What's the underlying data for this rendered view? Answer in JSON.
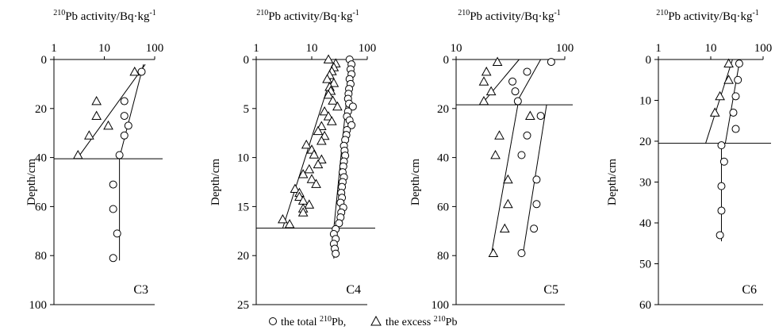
{
  "x_axis_title": "Pb activity/Bq·kg",
  "x_axis_title_sup_pre": "210",
  "x_axis_title_sup_post": "-1",
  "y_axis_title": "Depth/cm",
  "legend": {
    "total_text": "the total",
    "total_sup": "210",
    "total_suffix": "Pb,",
    "excess_text": "the excess",
    "excess_sup": "210",
    "excess_suffix": "Pb"
  },
  "colors": {
    "ink": "#000000",
    "background": "#ffffff"
  },
  "chart_data": [
    {
      "type": "scatter",
      "core": "C3",
      "x_scale": "log",
      "xlim": [
        1,
        100
      ],
      "x_ticks": [
        "1",
        "10",
        "100"
      ],
      "ylim": [
        0,
        100
      ],
      "y_ticks": [
        "0",
        "20",
        "40",
        "60",
        "80",
        "100"
      ],
      "total_210Pb": [
        [
          55,
          5
        ],
        [
          25,
          17
        ],
        [
          25,
          23
        ],
        [
          30,
          27
        ],
        [
          25,
          31
        ],
        [
          20,
          39
        ],
        [
          15,
          51
        ],
        [
          15,
          61
        ],
        [
          18,
          71
        ],
        [
          15,
          81
        ]
      ],
      "excess_210Pb": [
        [
          40,
          5
        ],
        [
          7,
          17
        ],
        [
          7,
          23
        ],
        [
          12,
          27
        ],
        [
          5,
          31
        ],
        [
          3,
          39
        ]
      ],
      "break_depth": 40.5,
      "fit_lines": [
        {
          "x": [
            3,
            65
          ],
          "y": [
            40,
            2
          ]
        },
        {
          "x": [
            20,
            60
          ],
          "y": [
            40,
            2
          ]
        },
        {
          "x": [
            20,
            20
          ],
          "y": [
            40,
            82
          ]
        }
      ]
    },
    {
      "type": "scatter",
      "core": "C4",
      "x_scale": "log",
      "xlim": [
        1,
        100
      ],
      "x_ticks": [
        "1",
        "10",
        "100"
      ],
      "ylim": [
        0,
        25
      ],
      "y_ticks": [
        "0",
        "5",
        "10",
        "15",
        "20",
        "25"
      ],
      "total_210Pb": [
        [
          48,
          0
        ],
        [
          52,
          0.5
        ],
        [
          50,
          1
        ],
        [
          52,
          1.5
        ],
        [
          48,
          2
        ],
        [
          50,
          2.5
        ],
        [
          47,
          3
        ],
        [
          46,
          3.5
        ],
        [
          45,
          4
        ],
        [
          47,
          4.5
        ],
        [
          55,
          4.8
        ],
        [
          45,
          5.3
        ],
        [
          43,
          5.8
        ],
        [
          48,
          6.2
        ],
        [
          52,
          6.7
        ],
        [
          43,
          7.2
        ],
        [
          42,
          7.7
        ],
        [
          40,
          8.2
        ],
        [
          38,
          8.8
        ],
        [
          39,
          9.3
        ],
        [
          40,
          9.8
        ],
        [
          38,
          10.4
        ],
        [
          37,
          10.9
        ],
        [
          36,
          11.5
        ],
        [
          38,
          12
        ],
        [
          36,
          12.5
        ],
        [
          35,
          13
        ],
        [
          34,
          13.6
        ],
        [
          35,
          14.1
        ],
        [
          33,
          14.6
        ],
        [
          37,
          15.1
        ],
        [
          34,
          15.6
        ],
        [
          33,
          16.1
        ],
        [
          31,
          16.7
        ],
        [
          27,
          17.3
        ],
        [
          25,
          17.8
        ],
        [
          27,
          18.3
        ],
        [
          25,
          18.8
        ],
        [
          26,
          19.3
        ],
        [
          27,
          19.8
        ]
      ],
      "excess_210Pb": [
        [
          20,
          0
        ],
        [
          27,
          0.4
        ],
        [
          25,
          0.8
        ],
        [
          23,
          1.2
        ],
        [
          21,
          1.6
        ],
        [
          19,
          2
        ],
        [
          25,
          2.4
        ],
        [
          21,
          2.8
        ],
        [
          22,
          3.2
        ],
        [
          20,
          3.6
        ],
        [
          24,
          4.2
        ],
        [
          29,
          4.8
        ],
        [
          17,
          5.3
        ],
        [
          20,
          5.8
        ],
        [
          23,
          6.3
        ],
        [
          15,
          6.8
        ],
        [
          13,
          7.3
        ],
        [
          17,
          7.8
        ],
        [
          15,
          8.3
        ],
        [
          8,
          8.7
        ],
        [
          10,
          9.2
        ],
        [
          11,
          9.7
        ],
        [
          15,
          10.2
        ],
        [
          13,
          10.7
        ],
        [
          9,
          11.2
        ],
        [
          7,
          11.7
        ],
        [
          10,
          12.2
        ],
        [
          12,
          12.7
        ],
        [
          5,
          13.2
        ],
        [
          6,
          13.6
        ],
        [
          6,
          14
        ],
        [
          7,
          14.4
        ],
        [
          9,
          14.8
        ],
        [
          7,
          15.2
        ],
        [
          7,
          15.6
        ],
        [
          3,
          16.3
        ],
        [
          4,
          16.8
        ]
      ],
      "break_depth": 17.2,
      "fit_lines": [
        {
          "x": [
            3,
            28
          ],
          "y": [
            17.2,
            0
          ]
        },
        {
          "x": [
            25,
            50
          ],
          "y": [
            17.2,
            0
          ]
        },
        {
          "x": [
            25,
            25
          ],
          "y": [
            17.2,
            20.3
          ]
        }
      ]
    },
    {
      "type": "scatter",
      "core": "C5",
      "x_scale": "log",
      "xlim": [
        10,
        100
      ],
      "x_ticks": [
        "10",
        "100"
      ],
      "ylim": [
        0,
        100
      ],
      "y_ticks": [
        "0",
        "20",
        "40",
        "60",
        "80",
        "100"
      ],
      "total_210Pb": [
        [
          75,
          1
        ],
        [
          45,
          5
        ],
        [
          33,
          9
        ],
        [
          35,
          13
        ],
        [
          37,
          17
        ],
        [
          60,
          23
        ],
        [
          45,
          31
        ],
        [
          40,
          39
        ],
        [
          55,
          49
        ],
        [
          55,
          59
        ],
        [
          52,
          69
        ],
        [
          40,
          79
        ]
      ],
      "excess_210Pb": [
        [
          24,
          1
        ],
        [
          19,
          5
        ],
        [
          18,
          9
        ],
        [
          21,
          13
        ],
        [
          18,
          17
        ],
        [
          48,
          23
        ],
        [
          25,
          31
        ],
        [
          23,
          39
        ],
        [
          30,
          49
        ],
        [
          30,
          59
        ],
        [
          28,
          69
        ],
        [
          22,
          79
        ]
      ],
      "break_depth": 18.5,
      "fit_lines": [
        {
          "x": [
            17,
            38
          ],
          "y": [
            18.5,
            0
          ]
        },
        {
          "x": [
            35,
            60
          ],
          "y": [
            18.5,
            0
          ]
        },
        {
          "x": [
            21,
            37
          ],
          "y": [
            80,
            18.5
          ]
        },
        {
          "x": [
            41,
            68
          ],
          "y": [
            80,
            18.5
          ]
        }
      ]
    },
    {
      "type": "scatter",
      "core": "C6",
      "x_scale": "log",
      "xlim": [
        1,
        100
      ],
      "x_ticks": [
        "1",
        "10",
        "100"
      ],
      "ylim": [
        0,
        60
      ],
      "y_ticks": [
        "0",
        "10",
        "20",
        "30",
        "40",
        "50",
        "60"
      ],
      "total_210Pb": [
        [
          35,
          1
        ],
        [
          33,
          5
        ],
        [
          30,
          9
        ],
        [
          27,
          13
        ],
        [
          30,
          17
        ],
        [
          16,
          21
        ],
        [
          18,
          25
        ],
        [
          16,
          31
        ],
        [
          16,
          37
        ],
        [
          15,
          43
        ]
      ],
      "excess_210Pb": [
        [
          22,
          1
        ],
        [
          22,
          5
        ],
        [
          15,
          9
        ],
        [
          12,
          13
        ]
      ],
      "break_depth": 20.5,
      "fit_lines": [
        {
          "x": [
            8,
            26
          ],
          "y": [
            20.5,
            0
          ]
        },
        {
          "x": [
            19,
            36
          ],
          "y": [
            20.5,
            0
          ]
        },
        {
          "x": [
            16,
            16
          ],
          "y": [
            20.5,
            44.5
          ]
        }
      ]
    }
  ]
}
